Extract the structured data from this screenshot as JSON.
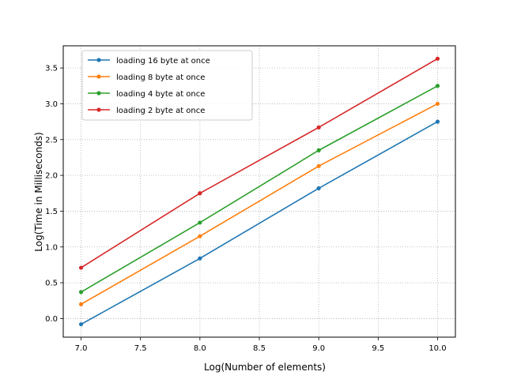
{
  "chart_data": {
    "type": "line",
    "xlabel": "Log(Number of elements)",
    "ylabel": "Log(Time in Milliseconds)",
    "x": [
      7.0,
      8.0,
      9.0,
      10.0
    ],
    "xlim": [
      6.85,
      10.15
    ],
    "ylim": [
      -0.26,
      3.81
    ],
    "xticks": [
      "7.0",
      "7.5",
      "8.0",
      "8.5",
      "9.0",
      "9.5",
      "10.0"
    ],
    "yticks": [
      "0.0",
      "0.5",
      "1.0",
      "1.5",
      "2.0",
      "2.5",
      "3.0",
      "3.5"
    ],
    "grid": true,
    "grid_style": "dotted",
    "legend_position": "upper-left",
    "series": [
      {
        "name": "loading 16 byte at once",
        "color": "#1f77b4",
        "values": [
          -0.08,
          0.84,
          1.82,
          2.75
        ]
      },
      {
        "name": "loading 8 byte at once",
        "color": "#ff7f0e",
        "values": [
          0.2,
          1.15,
          2.13,
          3.0
        ]
      },
      {
        "name": "loading 4 byte at once",
        "color": "#2ca02c",
        "values": [
          0.37,
          1.34,
          2.35,
          3.25
        ]
      },
      {
        "name": "loading 2 byte at once",
        "color": "#d62728",
        "values": [
          0.71,
          1.75,
          2.67,
          3.63
        ]
      }
    ]
  }
}
